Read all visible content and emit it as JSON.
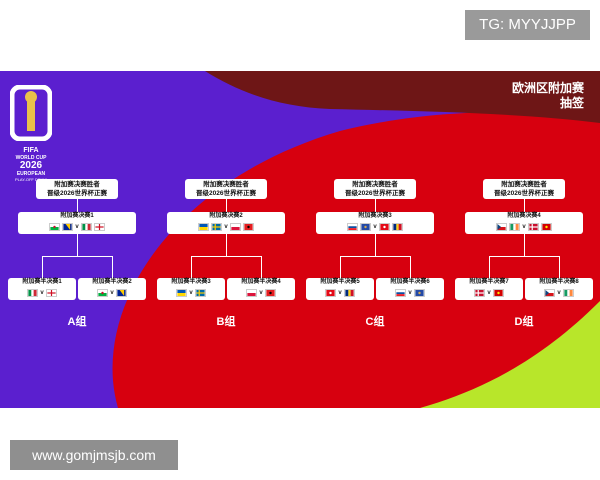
{
  "watermark_top": "TG: MYYJJPP",
  "watermark_bottom": "www.gomjmsjb.com",
  "logo": {
    "line1": "FIFA",
    "line2": "WORLD CUP",
    "line3": "2026",
    "line4": "EUROPEAN",
    "line5": "PLAY-OFF DRAW"
  },
  "title": {
    "line1": "欧洲区附加赛",
    "line2": "抽签"
  },
  "colors": {
    "purple": "#5b1fcf",
    "red": "#d7000f",
    "dark_red": "#6e1616",
    "lime": "#b8e62a",
    "white": "#ffffff"
  },
  "paths": [
    {
      "group": "A组",
      "winner": {
        "line1": "附加赛决赛胜者",
        "line2": "晋级2026世界杯正赛"
      },
      "final": {
        "label": "附加赛决赛1",
        "flags": [
          "wales",
          "bosnia",
          "italy",
          "england"
        ]
      },
      "semis": [
        {
          "label": "附加赛半决赛1",
          "home": "italy",
          "away": "england"
        },
        {
          "label": "附加赛半决赛2",
          "home": "wales",
          "away": "bosnia"
        }
      ]
    },
    {
      "group": "B组",
      "winner": {
        "line1": "附加赛决赛胜者",
        "line2": "晋级2026世界杯正赛"
      },
      "final": {
        "label": "附加赛决赛2",
        "flags": [
          "ukraine",
          "sweden",
          "poland",
          "albania"
        ]
      },
      "semis": [
        {
          "label": "附加赛半决赛3",
          "home": "ukraine",
          "away": "sweden"
        },
        {
          "label": "附加赛半决赛4",
          "home": "poland",
          "away": "albania"
        }
      ]
    },
    {
      "group": "C组",
      "winner": {
        "line1": "附加赛决赛胜者",
        "line2": "晋级2026世界杯正赛"
      },
      "final": {
        "label": "附加赛决赛3",
        "flags": [
          "slovakia",
          "kosovo",
          "turkey",
          "romania"
        ]
      },
      "semis": [
        {
          "label": "附加赛半决赛5",
          "home": "turkey",
          "away": "romania"
        },
        {
          "label": "附加赛半决赛6",
          "home": "slovakia",
          "away": "kosovo"
        }
      ]
    },
    {
      "group": "D组",
      "winner": {
        "line1": "附加赛决赛胜者",
        "line2": "晋级2026世界杯正赛"
      },
      "final": {
        "label": "附加赛决赛4",
        "flags": [
          "czech",
          "ireland",
          "denmark",
          "macedonia"
        ]
      },
      "semis": [
        {
          "label": "附加赛半决赛7",
          "home": "denmark",
          "away": "macedonia"
        },
        {
          "label": "附加赛半决赛8",
          "home": "czech",
          "away": "ireland"
        }
      ]
    }
  ],
  "vs_symbol": "v"
}
